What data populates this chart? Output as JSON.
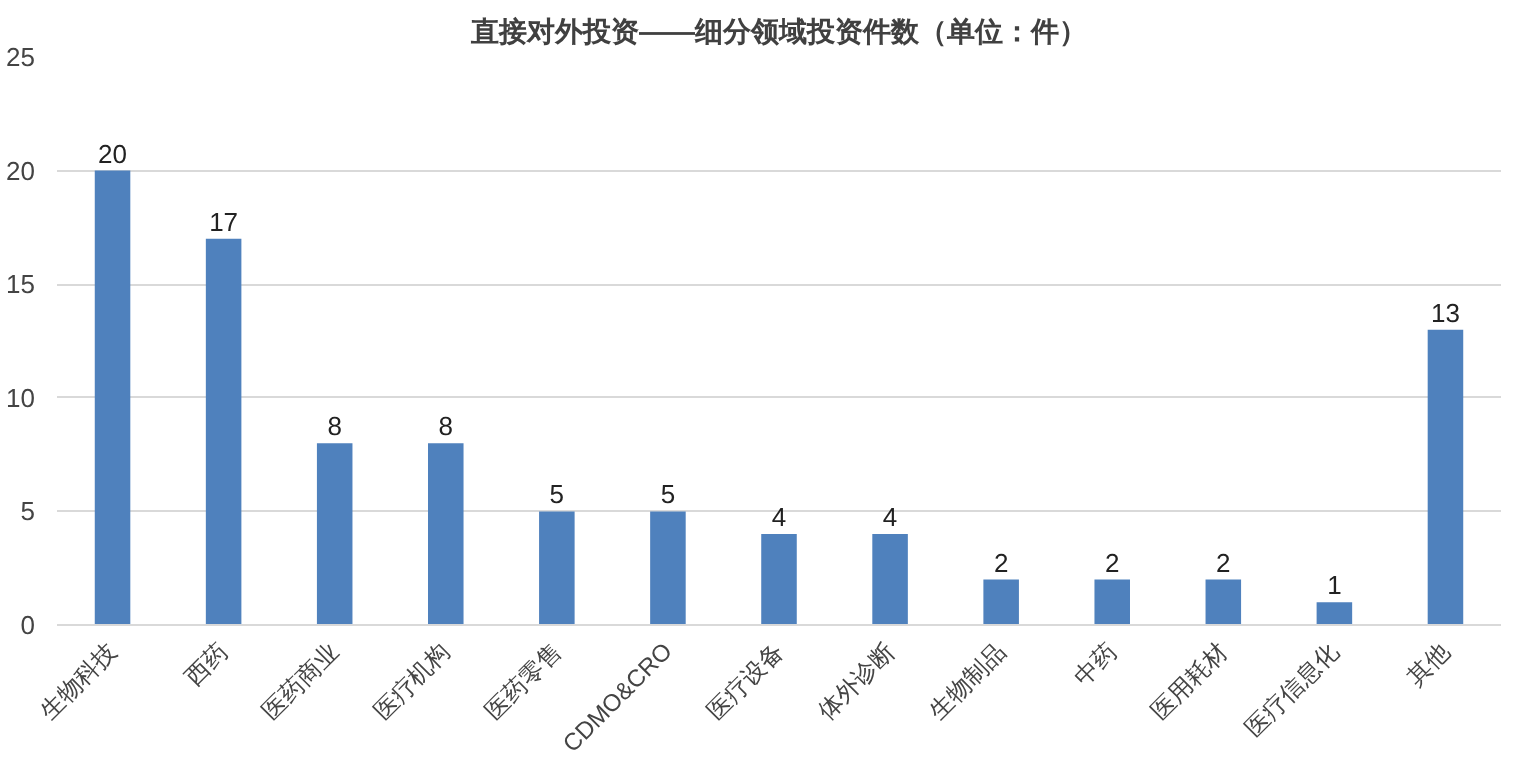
{
  "chart_data": {
    "type": "bar",
    "title": "直接对外投资——细分领域投资件数（单位：件）",
    "categories": [
      "生物科技",
      "西药",
      "医药商业",
      "医疗机构",
      "医药零售",
      "CDMO&CRO",
      "医疗设备",
      "体外诊断",
      "生物制品",
      "中药",
      "医用耗材",
      "医疗信息化",
      "其他"
    ],
    "values": [
      20,
      17,
      8,
      8,
      5,
      5,
      4,
      4,
      2,
      2,
      2,
      1,
      13
    ],
    "color": "#4f81bd",
    "ylim": [
      0,
      25
    ],
    "yticks": [
      0,
      5,
      10,
      15,
      20,
      25
    ],
    "grid": "y",
    "data_labels": true
  }
}
